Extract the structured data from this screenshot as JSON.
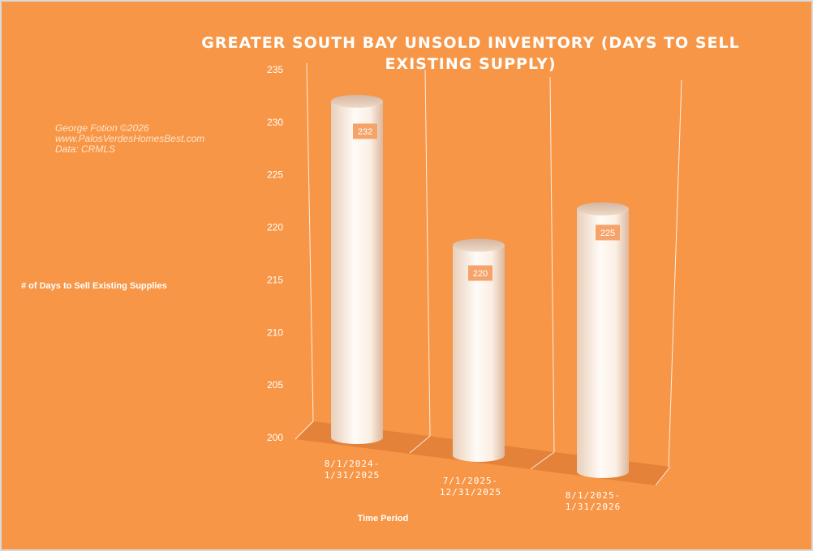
{
  "credits": [
    "George Fotion ©2026",
    "www.PalosVerdesHomesBest.com",
    "Data: CRMLS"
  ],
  "colors": {
    "background": "#f79646",
    "floor": "#e4823a",
    "bar_light": "#fffaf5",
    "bar_shade": "#e7cdb8",
    "label_box": "#f5a36a"
  },
  "chart_data": {
    "type": "bar",
    "style": "3d-cylinder",
    "title": "GREATER SOUTH BAY UNSOLD INVENTORY (DAYS TO SELL EXISTING SUPPLY)",
    "xlabel": "Time Period",
    "ylabel": "# of Days to Sell Existing Supplies",
    "categories": [
      [
        "8/1/2024-",
        "1/31/2025"
      ],
      [
        "7/1/2025-",
        "12/31/2025"
      ],
      [
        "8/1/2025-",
        "1/31/2026"
      ]
    ],
    "values": [
      232,
      220,
      225
    ],
    "data_labels": [
      "232",
      "220",
      "225"
    ],
    "ylim": [
      200,
      235
    ],
    "yticks": [
      200,
      205,
      210,
      215,
      220,
      225,
      230,
      235
    ],
    "grid": "vertical wall lines only",
    "legend": "none"
  }
}
